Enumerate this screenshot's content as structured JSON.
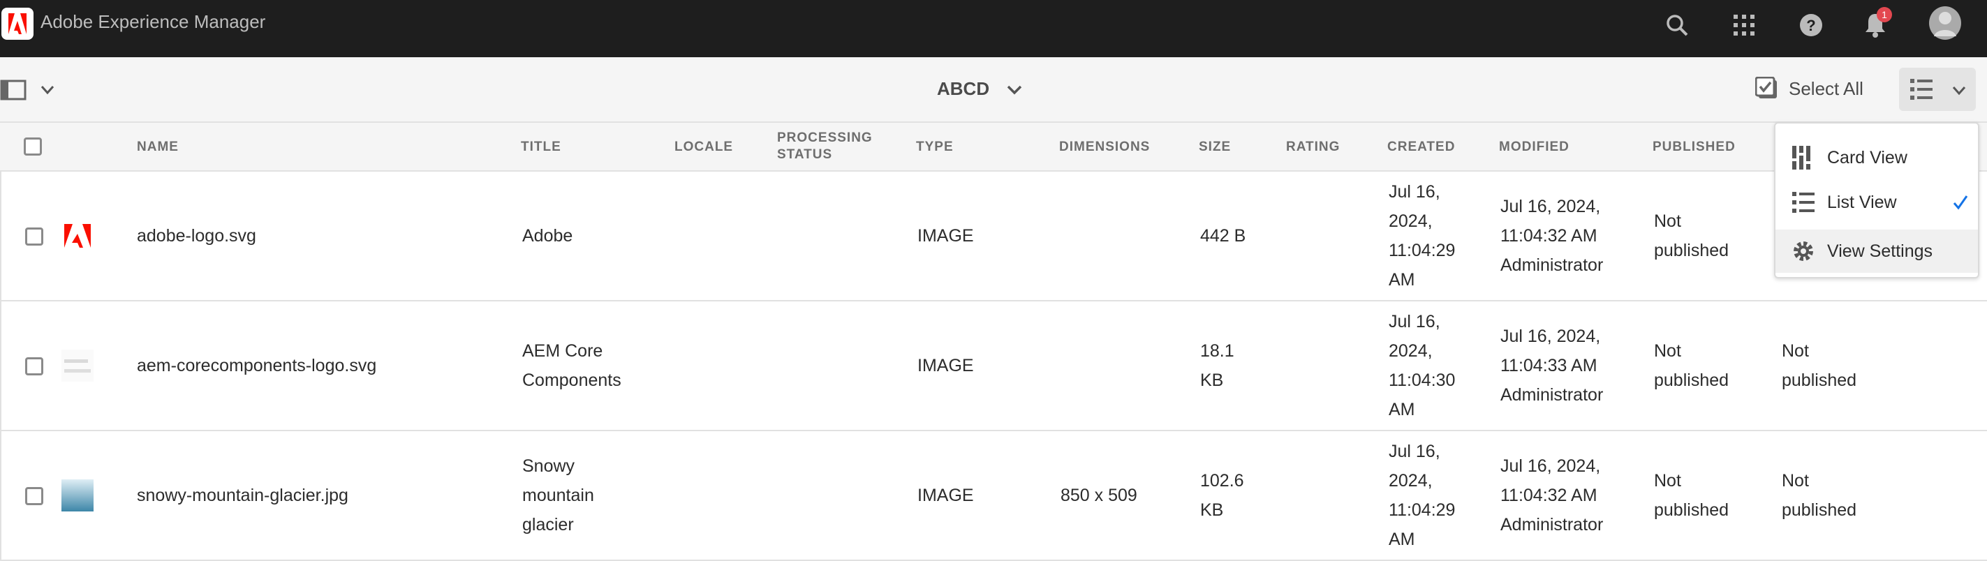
{
  "app": {
    "title": "Adobe Experience Manager",
    "notification_count": "1",
    "brand_color": "#fa0f00"
  },
  "toolbar": {
    "breadcrumb": "ABCD",
    "select_all": "Select All"
  },
  "columns": [
    "NAME",
    "TITLE",
    "LOCALE",
    "PROCESSING STATUS",
    "TYPE",
    "DIMENSIONS",
    "SIZE",
    "RATING",
    "CREATED",
    "MODIFIED",
    "PUBLISHED"
  ],
  "rows": [
    {
      "name": "adobe-logo.svg",
      "title": "Adobe",
      "type": "IMAGE",
      "dimensions": "",
      "size": "442 B",
      "created": "Jul 16, 2024, 11:04:29 AM",
      "modified": "Jul 16, 2024, 11:04:32 AM",
      "modified_by": "Administrator",
      "published": "Not published",
      "extra": ""
    },
    {
      "name": "aem-corecomponents-logo.svg",
      "title": "AEM Core Components",
      "type": "IMAGE",
      "dimensions": "",
      "size": "18.1 KB",
      "created": "Jul 16, 2024, 11:04:30 AM",
      "modified": "Jul 16, 2024, 11:04:33 AM",
      "modified_by": "Administrator",
      "published": "Not published",
      "extra": "Not published"
    },
    {
      "name": "snowy-mountain-glacier.jpg",
      "title": "Snowy mountain glacier",
      "type": "IMAGE",
      "dimensions": "850 x 509",
      "size": "102.6 KB",
      "created": "Jul 16, 2024, 11:04:29 AM",
      "modified": "Jul 16, 2024, 11:04:32 AM",
      "modified_by": "Administrator",
      "published": "Not published",
      "extra": "Not published"
    }
  ],
  "view_menu": {
    "items": [
      {
        "label": "Card View",
        "icon": "card-view-icon"
      },
      {
        "label": "List View",
        "icon": "list-view-icon",
        "selected": true
      },
      {
        "label": "View Settings",
        "icon": "gear-icon"
      }
    ]
  }
}
